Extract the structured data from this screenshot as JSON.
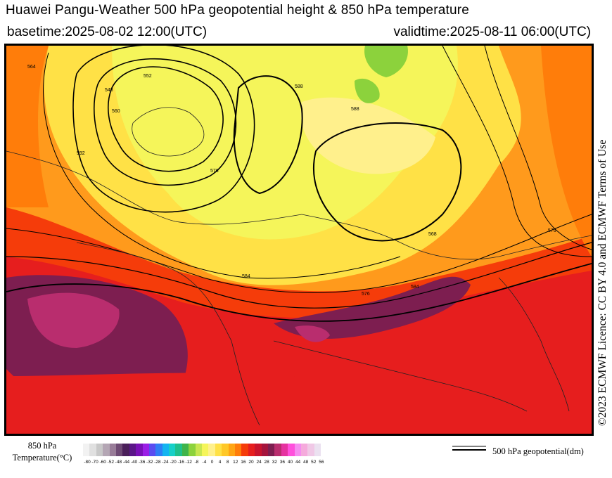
{
  "header": {
    "title": "Huawei Pangu-Weather 500 hPa geopotential height & 850 hPa temperature",
    "basetime": "basetime:2025-08-02 12:00(UTC)",
    "validtime": "validtime:2025-08-11 06:00(UTC)"
  },
  "licence": "©2023 ECMWF Licence: CC BY 4.0 and ECMWF Terms of Use",
  "map": {
    "contour_labels": [
      "564",
      "548",
      "552",
      "560",
      "576",
      "588",
      "584",
      "576",
      "584",
      "592",
      "588",
      "568",
      "576"
    ]
  },
  "colorbar": {
    "title_line1": "850 hPa",
    "title_line2": "Temperature(°C)",
    "ticks": [
      "-80",
      "-70",
      "-60",
      "-52",
      "-48",
      "-44",
      "-40",
      "-36",
      "-32",
      "-28",
      "-24",
      "-20",
      "-16",
      "-12",
      "-8",
      "-4",
      "0",
      "4",
      "8",
      "12",
      "16",
      "20",
      "24",
      "28",
      "32",
      "36",
      "40",
      "44",
      "48",
      "52",
      "56"
    ],
    "colors": [
      "#f2f2f2",
      "#e0e0e0",
      "#c8c8c8",
      "#b4a6b4",
      "#987c98",
      "#6e4a74",
      "#4b1f5a",
      "#5a1688",
      "#7a10b8",
      "#9b1ee6",
      "#5a4cf0",
      "#2f7ef5",
      "#14b4f0",
      "#16d0c8",
      "#1fc08c",
      "#3fb44a",
      "#8cd23c",
      "#c8e650",
      "#f5f55a",
      "#fff08c",
      "#ffe146",
      "#ffc828",
      "#ffa514",
      "#ff7d0a",
      "#f53c0a",
      "#e61e1e",
      "#c8142d",
      "#a5143c",
      "#7d1e50",
      "#b92d6e",
      "#e632a0",
      "#ff50dc",
      "#f58cf0",
      "#f5aadc",
      "#f0c8e6",
      "#ebe1f0"
    ]
  },
  "legend": {
    "label": "500 hPa geopotential(dm)"
  }
}
